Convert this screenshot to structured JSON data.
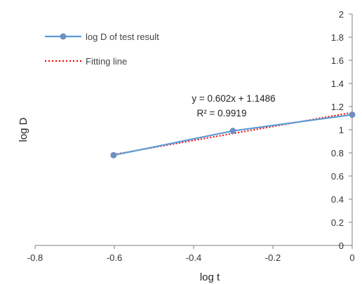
{
  "chart_data": {
    "type": "line",
    "xlabel": "log t",
    "ylabel": "log D",
    "xlim": [
      -0.8,
      0
    ],
    "ylim": [
      0,
      2
    ],
    "x_ticks": [
      -0.8,
      -0.6,
      -0.4,
      -0.2,
      0
    ],
    "x_tick_labels": [
      "-0.8",
      "-0.6",
      "-0.4",
      "-0.2",
      "0"
    ],
    "y_ticks": [
      0,
      0.2,
      0.4,
      0.6,
      0.8,
      1,
      1.2,
      1.4,
      1.6,
      1.8,
      2
    ],
    "y_tick_labels": [
      "0",
      "0.2",
      "0.4",
      "0.6",
      "0.8",
      "1",
      "1.2",
      "1.4",
      "1.6",
      "1.8",
      "2"
    ],
    "y_axis_side": "right",
    "grid": false,
    "legend_position": "top-left",
    "series": [
      {
        "name": "log D of test result",
        "style": "solid-line-with-markers",
        "color": "#5b9bd5",
        "marker_color": "#6f8fbf",
        "x": [
          -0.602,
          -0.301,
          0
        ],
        "y": [
          0.78,
          0.99,
          1.13
        ]
      },
      {
        "name": "Fitting line",
        "style": "dotted-line",
        "color": "#ff0000",
        "fit": {
          "slope": 0.602,
          "intercept": 1.1486
        },
        "x": [
          -0.602,
          0
        ],
        "y": [
          0.786,
          1.1486
        ]
      }
    ],
    "annotations": {
      "equation": "y = 0.602x + 1.1486",
      "r_squared": "R² = 0.9919"
    }
  }
}
